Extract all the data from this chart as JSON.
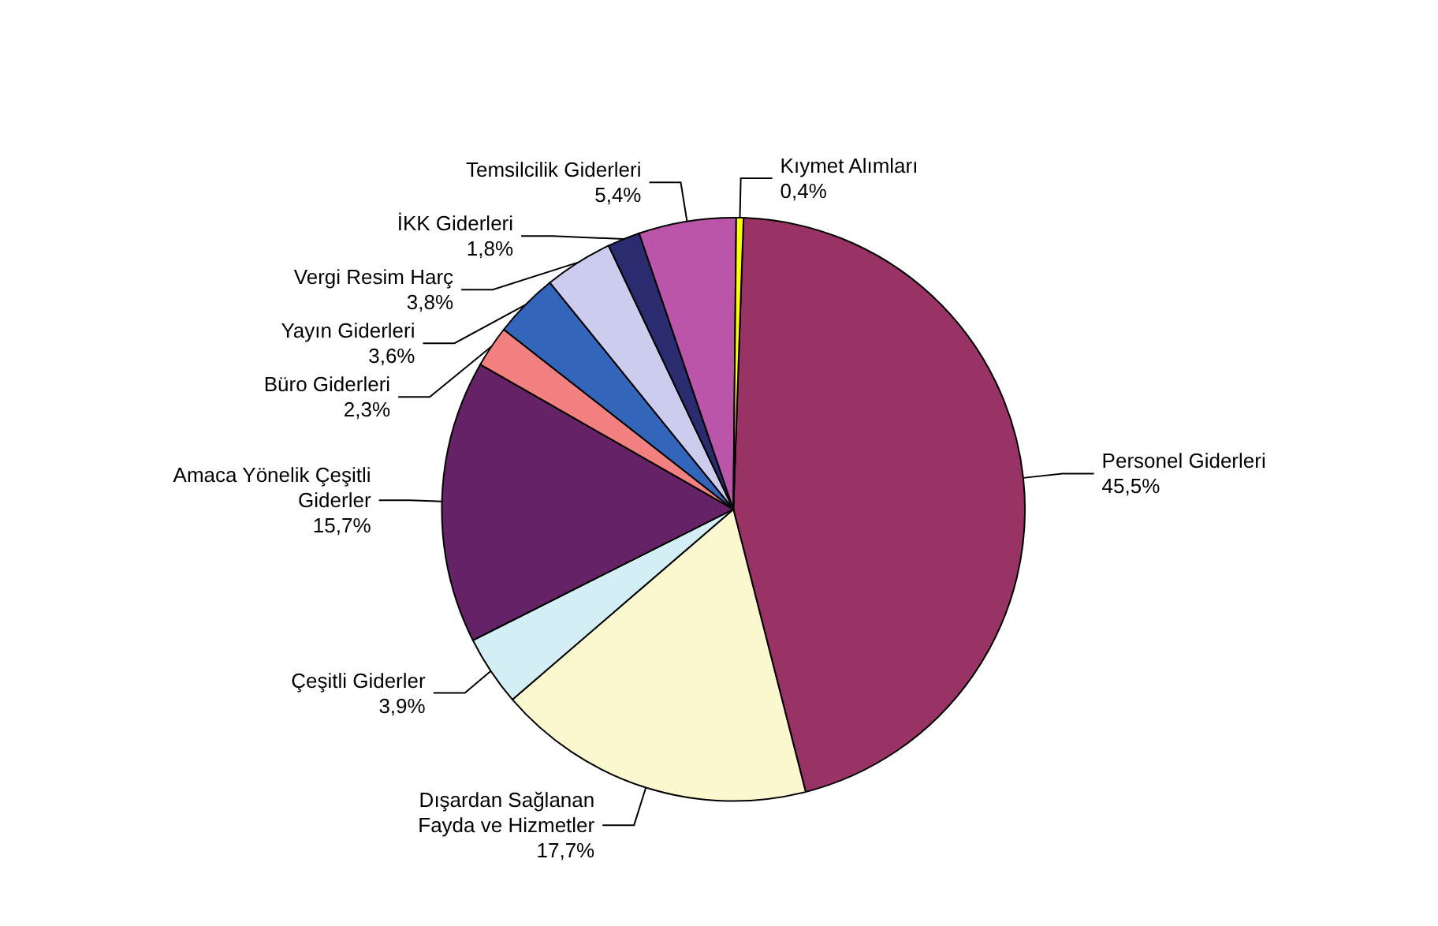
{
  "chart_data": {
    "type": "pie",
    "categories": [
      "Personel Giderleri",
      "Dışardan Sağlanan\nFayda ve Hizmetler",
      "Çeşitli Giderler",
      "Amaca Yönelik Çeşitli\nGiderler",
      "Büro Giderleri",
      "Yayın Giderleri",
      "Vergi Resim Harç",
      "İKK Giderleri",
      "Temsilcilik Giderleri",
      "Kıymet Alımları"
    ],
    "values": [
      45.5,
      17.7,
      3.9,
      15.7,
      2.3,
      3.6,
      3.8,
      1.8,
      5.4,
      0.4
    ],
    "value_labels": [
      "45,5%",
      "17,7%",
      "3,9%",
      "15,7%",
      "2,3%",
      "3,6%",
      "3,8%",
      "1,8%",
      "5,4%",
      "0,4%"
    ],
    "colors": [
      "#993366",
      "#fbf8d0",
      "#d3eef5",
      "#662266",
      "#f28080",
      "#3366bb",
      "#ccccee",
      "#2b2b70",
      "#bb55aa",
      "#ffff00"
    ],
    "legend": false
  }
}
